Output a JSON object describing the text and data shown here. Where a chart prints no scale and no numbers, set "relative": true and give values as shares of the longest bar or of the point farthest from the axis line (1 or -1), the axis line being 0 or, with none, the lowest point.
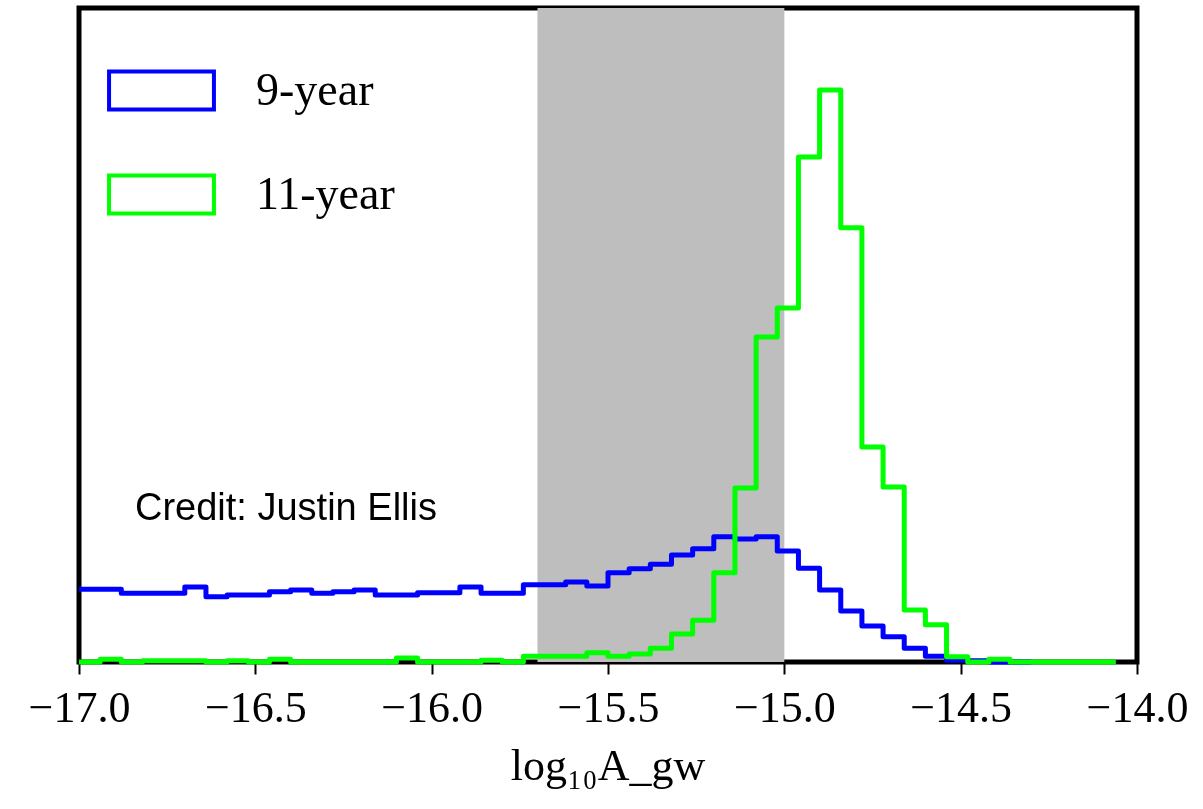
{
  "chart_data": {
    "type": "step",
    "relative": true,
    "xlabel": "log₁₀A_gw",
    "xlim": [
      -17.0,
      -14.0
    ],
    "xticks": [
      {
        "value": -17.0,
        "label": "−17.0"
      },
      {
        "value": -16.5,
        "label": "−16.5"
      },
      {
        "value": -16.0,
        "label": "−16.0"
      },
      {
        "value": -15.5,
        "label": "−15.5"
      },
      {
        "value": -15.0,
        "label": "−15.0"
      },
      {
        "value": -14.5,
        "label": "−14.5"
      },
      {
        "value": -14.0,
        "label": "−14.0"
      }
    ],
    "x": [
      -17.0,
      -16.94,
      -16.88,
      -16.82,
      -16.76,
      -16.7,
      -16.64,
      -16.58,
      -16.52,
      -16.46,
      -16.4,
      -16.34,
      -16.28,
      -16.22,
      -16.16,
      -16.1,
      -16.04,
      -15.98,
      -15.92,
      -15.86,
      -15.8,
      -15.74,
      -15.68,
      -15.62,
      -15.56,
      -15.5,
      -15.44,
      -15.38,
      -15.32,
      -15.26,
      -15.2,
      -15.14,
      -15.08,
      -15.02,
      -14.96,
      -14.9,
      -14.84,
      -14.78,
      -14.72,
      -14.66,
      -14.6,
      -14.54,
      -14.48,
      -14.42,
      -14.36,
      -14.3,
      -14.24,
      -14.18,
      -14.12,
      -14.06
    ],
    "series": [
      {
        "name": "9-year",
        "color": "#0000ff",
        "values": [
          0.127,
          0.127,
          0.12,
          0.12,
          0.12,
          0.131,
          0.114,
          0.117,
          0.117,
          0.123,
          0.126,
          0.12,
          0.123,
          0.126,
          0.117,
          0.117,
          0.121,
          0.121,
          0.131,
          0.12,
          0.12,
          0.135,
          0.135,
          0.14,
          0.133,
          0.156,
          0.163,
          0.171,
          0.187,
          0.198,
          0.219,
          0.215,
          0.219,
          0.194,
          0.164,
          0.126,
          0.089,
          0.063,
          0.044,
          0.024,
          0.01,
          0.003,
          0.002,
          0,
          0,
          0,
          null,
          null,
          null,
          null
        ]
      },
      {
        "name": "11-year",
        "color": "#00ff00",
        "values": [
          0,
          0.005,
          0,
          0.002,
          0.002,
          0.002,
          0,
          0.002,
          0,
          0.005,
          0,
          0,
          0,
          0,
          0,
          0.007,
          0,
          0,
          0,
          0.003,
          0,
          0.01,
          0.01,
          0.01,
          0.016,
          0.01,
          0.014,
          0.024,
          0.049,
          0.073,
          0.156,
          0.304,
          0.568,
          0.619,
          0.883,
          1,
          0.759,
          0.376,
          0.306,
          0.091,
          0.065,
          0.009,
          0,
          0.005,
          0,
          0,
          0,
          0,
          0,
          0
        ]
      }
    ],
    "bands": [
      {
        "axis": "x",
        "from": -15.7,
        "to": -15.0,
        "color": "#bebebe"
      }
    ],
    "annotations": [
      "Credit: Justin Ellis"
    ],
    "legend": "top left",
    "grid": false
  }
}
